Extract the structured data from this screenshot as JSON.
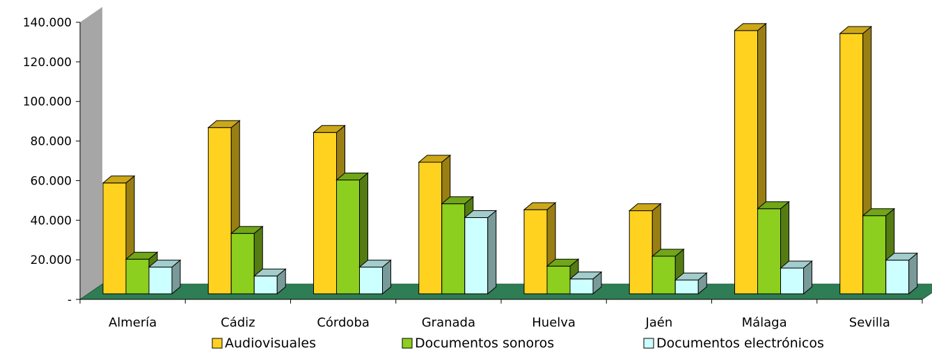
{
  "chart_data": {
    "type": "bar",
    "title": "",
    "xlabel": "",
    "ylabel": "",
    "ylim": [
      0,
      140000
    ],
    "yticks": [
      0,
      20000,
      40000,
      60000,
      80000,
      100000,
      120000,
      140000
    ],
    "ytick_labels": [
      "-",
      "20.000",
      "40.000",
      "60.000",
      "80.000",
      "100.000",
      "120.000",
      "140.000"
    ],
    "categories": [
      "Almería",
      "Cádiz",
      "Córdoba",
      "Granada",
      "Huelva",
      "Jaén",
      "Málaga",
      "Sevilla"
    ],
    "series": [
      {
        "name": "Audiovisuales",
        "color": "#FFD21F",
        "values": [
          56000,
          84000,
          81500,
          66500,
          42500,
          42000,
          133000,
          131500
        ]
      },
      {
        "name": "Documentos sonoros",
        "color": "#8CCF1E",
        "values": [
          17500,
          30500,
          57500,
          45500,
          14000,
          19000,
          43000,
          39500
        ]
      },
      {
        "name": "Documentos electrónicos",
        "color": "#CCFFFF",
        "values": [
          13500,
          9000,
          13500,
          38500,
          7500,
          7000,
          13000,
          17000
        ]
      }
    ],
    "grid": false,
    "legend_position": "bottom",
    "style": "3d-column"
  }
}
